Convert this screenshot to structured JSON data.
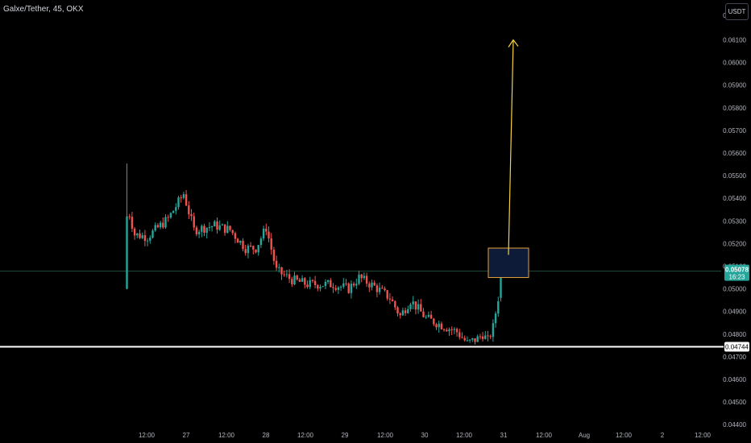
{
  "header": {
    "title": "Galxe/Tether, 45, OKX",
    "currency_label": "USDT"
  },
  "price_scale": {
    "top_label": "0.06200",
    "last_price_label": "0.05078",
    "countdown_label": "16:23",
    "support_price_label": "0.04744"
  },
  "colors": {
    "up": "#26a69a",
    "down": "#ef5350",
    "arrow": "#f5d142",
    "box_border": "#e8a33a",
    "box_fill": "#0d1b38",
    "support_line": "#ffffff",
    "last_price_line": "#1e4d3a"
  },
  "chart_data": {
    "type": "candlestick",
    "title": "Galxe/Tether, 45, OKX",
    "symbol": "Galxe/Tether",
    "interval": "45",
    "exchange": "OKX",
    "quote_currency": "USDT",
    "y_ticks": [
      "0.06100",
      "0.06000",
      "0.05900",
      "0.05800",
      "0.05700",
      "0.05600",
      "0.05500",
      "0.05400",
      "0.05300",
      "0.05200",
      "0.05100",
      "0.05000",
      "0.04900",
      "0.04800",
      "0.04700",
      "0.04600",
      "0.04500",
      "0.04400"
    ],
    "x_ticks": [
      "12:00",
      "27",
      "12:00",
      "28",
      "12:00",
      "29",
      "12:00",
      "30",
      "12:00",
      "31",
      "12:00",
      "Aug",
      "12:00",
      "2",
      "12:00"
    ],
    "ylim": [
      0.044,
      0.062
    ],
    "last_price": 0.05078,
    "support_level": 0.04744,
    "grid": false,
    "price_path": [
      [
        0,
        0.05
      ],
      [
        1,
        0.0533
      ],
      [
        3,
        0.0524
      ],
      [
        8,
        0.0523
      ],
      [
        16,
        0.0531
      ],
      [
        22,
        0.0542
      ],
      [
        26,
        0.0526
      ],
      [
        34,
        0.0528
      ],
      [
        40,
        0.0526
      ],
      [
        46,
        0.0518
      ],
      [
        50,
        0.0518
      ],
      [
        54,
        0.0527
      ],
      [
        58,
        0.0508
      ],
      [
        64,
        0.0504
      ],
      [
        70,
        0.0502
      ],
      [
        80,
        0.0502
      ],
      [
        86,
        0.05
      ],
      [
        90,
        0.0505
      ],
      [
        96,
        0.0501
      ],
      [
        102,
        0.0496
      ],
      [
        106,
        0.0488
      ],
      [
        110,
        0.0495
      ],
      [
        116,
        0.0487
      ],
      [
        122,
        0.0484
      ],
      [
        128,
        0.0481
      ],
      [
        132,
        0.0476
      ],
      [
        136,
        0.0478
      ],
      [
        138,
        0.048
      ],
      [
        140,
        0.0477
      ],
      [
        142,
        0.0483
      ],
      [
        144,
        0.0496
      ],
      [
        145,
        0.05078
      ]
    ],
    "target_arrow": {
      "from": 0.0515,
      "to": 0.061
    },
    "highlight_box": {
      "low": 0.0505,
      "high": 0.0518
    }
  }
}
